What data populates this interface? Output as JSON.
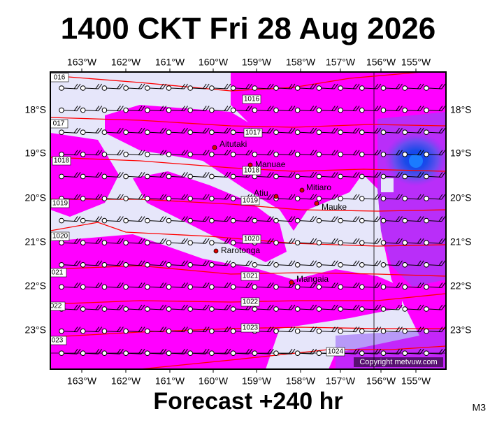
{
  "title": "1400 CKT Fri 28 Aug 2026",
  "lon_labels": [
    "163°W",
    "162°W",
    "161°W",
    "160°W",
    "159°W",
    "158°W",
    "157°W",
    "156°W",
    "155°W"
  ],
  "lat_labels": [
    "18°S",
    "19°S",
    "20°S",
    "21°S",
    "22°S",
    "23°S"
  ],
  "isobar_labels": [
    "016",
    "1016",
    "017",
    "1017",
    "1018",
    "1018",
    "1019",
    "1019",
    "1020",
    "1020",
    "021",
    "1021",
    "022",
    "1022",
    "1023",
    "023",
    "1024"
  ],
  "places": [
    "Aitutaki",
    "Manuae",
    "Mitiaro",
    "Atiu",
    "Mauke",
    "Rarotonga",
    "Mangaia"
  ],
  "copyright": "Copyright metvuw.com",
  "footer": "Forecast +240 hr",
  "model": "M3"
}
